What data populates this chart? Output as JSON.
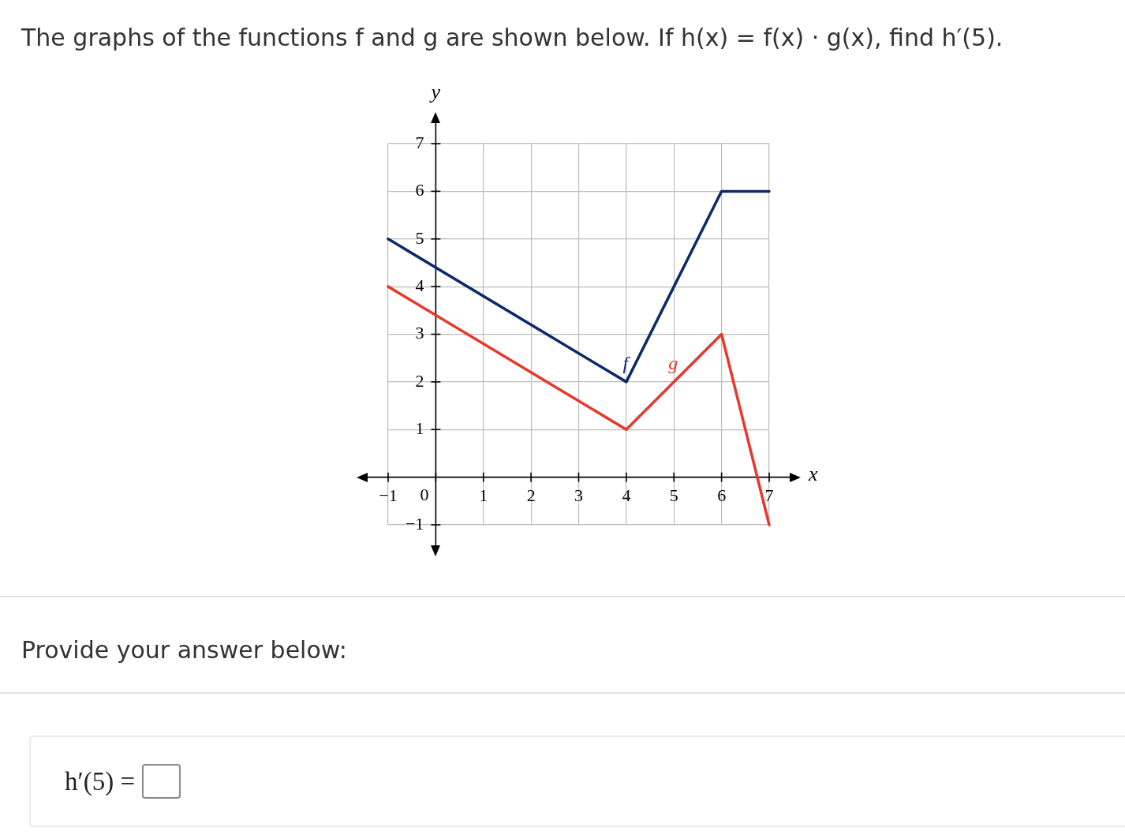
{
  "chart_data": {
    "type": "line",
    "title": "The graphs of the functions f and g are shown below. If h(x) = f(x) · g(x), find h′(5).",
    "xlabel": "x",
    "ylabel": "y",
    "x": [
      -1,
      4,
      6,
      7
    ],
    "series": [
      {
        "name": "f",
        "color": "#0c2a69",
        "values": [
          5,
          2,
          6,
          6
        ]
      },
      {
        "name": "g",
        "color": "#e8372b",
        "values": [
          4,
          1,
          3,
          -1
        ]
      }
    ],
    "xlim": [
      -1,
      7
    ],
    "ylim": [
      -1,
      7
    ],
    "xticks": [
      {
        "value": -1,
        "label": "−1"
      },
      0,
      1,
      2,
      3,
      4,
      5,
      6,
      7
    ],
    "yticks": [
      {
        "value": -1,
        "label": "−1"
      },
      1,
      2,
      3,
      4,
      5,
      6,
      7
    ],
    "grid": true,
    "legend": false,
    "marker": "none",
    "line_style": "solid",
    "annotations": [
      "Provide your answer below:",
      "h′(5) ="
    ]
  }
}
